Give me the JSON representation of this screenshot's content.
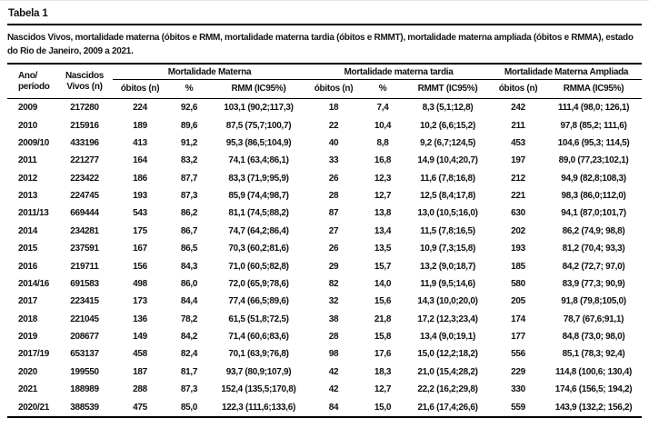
{
  "title": "Tabela 1",
  "caption": "Nascidos Vivos, mortalidade materna (óbitos e RMM, mortalidade materna tardia (óbitos e RMMT), mortalidade materna ampliada (óbitos e RMMA), estado do Rio de Janeiro, 2009 a 2021.",
  "table": {
    "row_headers": {
      "period": "Ano/\nperíodo",
      "live_births": "Nascidos\nVivos (n)"
    },
    "groups": [
      {
        "label": "Mortalidade Materna",
        "colspan": 3
      },
      {
        "label": "Mortalidade materna tardia",
        "colspan": 3
      },
      {
        "label": "Mortalidade Materna Ampliada",
        "colspan": 2
      }
    ],
    "subheaders": [
      "óbitos (n)",
      "%",
      "RMM (IC95%)",
      "óbitos (n)",
      "%",
      "RMMT (IC95%)",
      "óbitos (n)",
      "RMMA (IC95%)"
    ],
    "rows": [
      [
        "2009",
        "217280",
        "224",
        "92,6",
        "103,1 (90,2;117,3)",
        "18",
        "7,4",
        "8,3 (5,1;12,8)",
        "242",
        "111,4 (98,0; 126,1)"
      ],
      [
        "2010",
        "215916",
        "189",
        "89,6",
        "87,5 (75,7;100,7)",
        "22",
        "10,4",
        "10,2 (6,6;15,2)",
        "211",
        "97,8 (85,2; 111,6)"
      ],
      [
        "2009/10",
        "433196",
        "413",
        "91,2",
        "95,3 (86,5;104,9)",
        "40",
        "8,8",
        "9,2 (6,7;124,5)",
        "453",
        "104,6 (95,3; 114,5)"
      ],
      [
        "2011",
        "221277",
        "164",
        "83,2",
        "74,1 (63,4;86,1)",
        "33",
        "16,8",
        "14,9 (10,4;20,7)",
        "197",
        "89,0 (77,23;102,1)"
      ],
      [
        "2012",
        "223422",
        "186",
        "87,7",
        "83,3 (71,9;95,9)",
        "26",
        "12,3",
        "11,6 (7,8;16,8)",
        "212",
        "94,9 (82,8;108,3)"
      ],
      [
        "2013",
        "224745",
        "193",
        "87,3",
        "85,9 (74,4;98,7)",
        "28",
        "12,7",
        "12,5 (8,4;17,8)",
        "221",
        "98,3 (86,0;112,0)"
      ],
      [
        "2011/13",
        "669444",
        "543",
        "86,2",
        "81,1 (74,5;88,2)",
        "87",
        "13,8",
        "13,0 (10,5;16,0)",
        "630",
        "94,1 (87,0;101,7)"
      ],
      [
        "2014",
        "234281",
        "175",
        "86,7",
        "74,7 (64,2;86,4)",
        "27",
        "13,4",
        "11,5 (7,8;16,5)",
        "202",
        "86,2 (74,9; 98,8)"
      ],
      [
        "2015",
        "237591",
        "167",
        "86,5",
        "70,3 (60,2;81,6)",
        "26",
        "13,5",
        "10,9 (7,3;15,8)",
        "193",
        "81,2 (70,4; 93,3)"
      ],
      [
        "2016",
        "219711",
        "156",
        "84,3",
        "71,0 (60,5;82,8)",
        "29",
        "15,7",
        "13,2 (9,0;18,7)",
        "185",
        "84,2 (72,7; 97,0)"
      ],
      [
        "2014/16",
        "691583",
        "498",
        "86,0",
        "72,0 (65,9;78,6)",
        "82",
        "14,0",
        "11,9 (9,5;14,6)",
        "580",
        "83,9 (77,3; 90,9)"
      ],
      [
        "2017",
        "223415",
        "173",
        "84,4",
        "77,4 (66,5;89,6)",
        "32",
        "15,6",
        "14,3 (10,0;20,0)",
        "205",
        "91,8 (79,8;105,0)"
      ],
      [
        "2018",
        "221045",
        "136",
        "78,2",
        "61,5 (51,8;72,5)",
        "38",
        "21,8",
        "17,2 (12,3;23,4)",
        "174",
        "78,7 (67,6;91,1)"
      ],
      [
        "2019",
        "208677",
        "149",
        "84,2",
        "71,4 (60,6;83,6)",
        "28",
        "15,8",
        "13,4 (9,0;19,1)",
        "177",
        "84,8 (73,0; 98,0)"
      ],
      [
        "2017/19",
        "653137",
        "458",
        "82,4",
        "70,1 (63,9;76,8)",
        "98",
        "17,6",
        "15,0 (12,2;18,2)",
        "556",
        "85,1 (78,3; 92,4)"
      ],
      [
        "2020",
        "199550",
        "187",
        "81,7",
        "93,7 (80,9;107,9)",
        "42",
        "18,3",
        "21,0 (15,4;28,2)",
        "229",
        "114,8 (100,6; 130,4)"
      ],
      [
        "2021",
        "188989",
        "288",
        "87,3",
        "152,4 (135,5;170,8)",
        "42",
        "12,7",
        "22,2 (16,2;29,8)",
        "330",
        "174,6 (156,5; 194,2)"
      ],
      [
        "2020/21",
        "388539",
        "475",
        "85,0",
        "122,3 (111,6;133,6)",
        "84",
        "15,0",
        "21,6 (17,4;26,6)",
        "559",
        "143,9 (132,2; 156,2)"
      ]
    ]
  }
}
